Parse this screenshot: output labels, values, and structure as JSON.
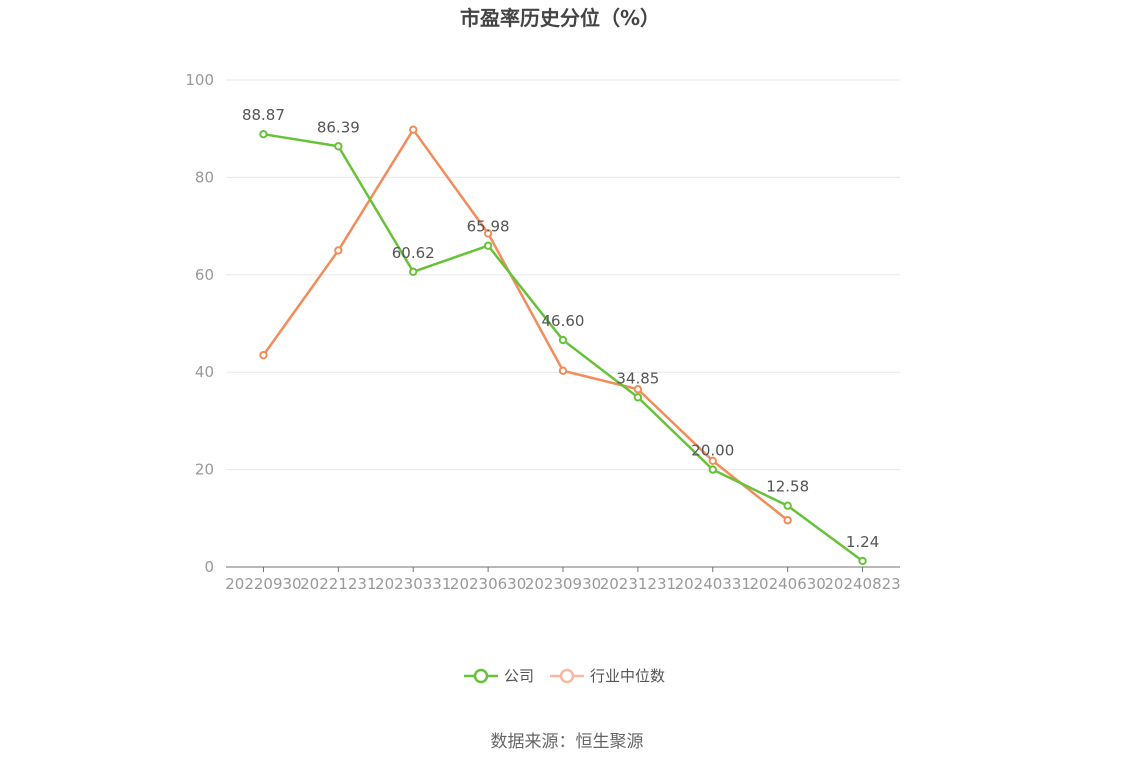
{
  "chart_data": {
    "type": "line",
    "title": "市盈率历史分位（%）",
    "categories": [
      "20220930",
      "20221231",
      "20230331",
      "20230630",
      "20230930",
      "20231231",
      "20240331",
      "20240630",
      "20240823"
    ],
    "yticks": [
      "0",
      "20",
      "40",
      "60",
      "80",
      "100"
    ],
    "ylim": [
      0,
      100
    ],
    "grid": true,
    "legend_position": "bottom-center",
    "series": [
      {
        "name": "公司",
        "color": "#67c23a",
        "values": [
          88.87,
          86.39,
          60.62,
          65.98,
          46.6,
          34.85,
          20.0,
          12.58,
          1.24
        ],
        "labels": [
          "88.87",
          "86.39",
          "60.62",
          "65.98",
          "46.60",
          "34.85",
          "20.00",
          "12.58",
          "1.24"
        ]
      },
      {
        "name": "行业中位数",
        "color": "#f28c5a",
        "legend_color": "#f9b9a0",
        "values": [
          43.5,
          65.0,
          89.8,
          68.5,
          40.3,
          36.5,
          21.8,
          9.6,
          null
        ]
      }
    ]
  },
  "source": "数据来源：恒生聚源"
}
